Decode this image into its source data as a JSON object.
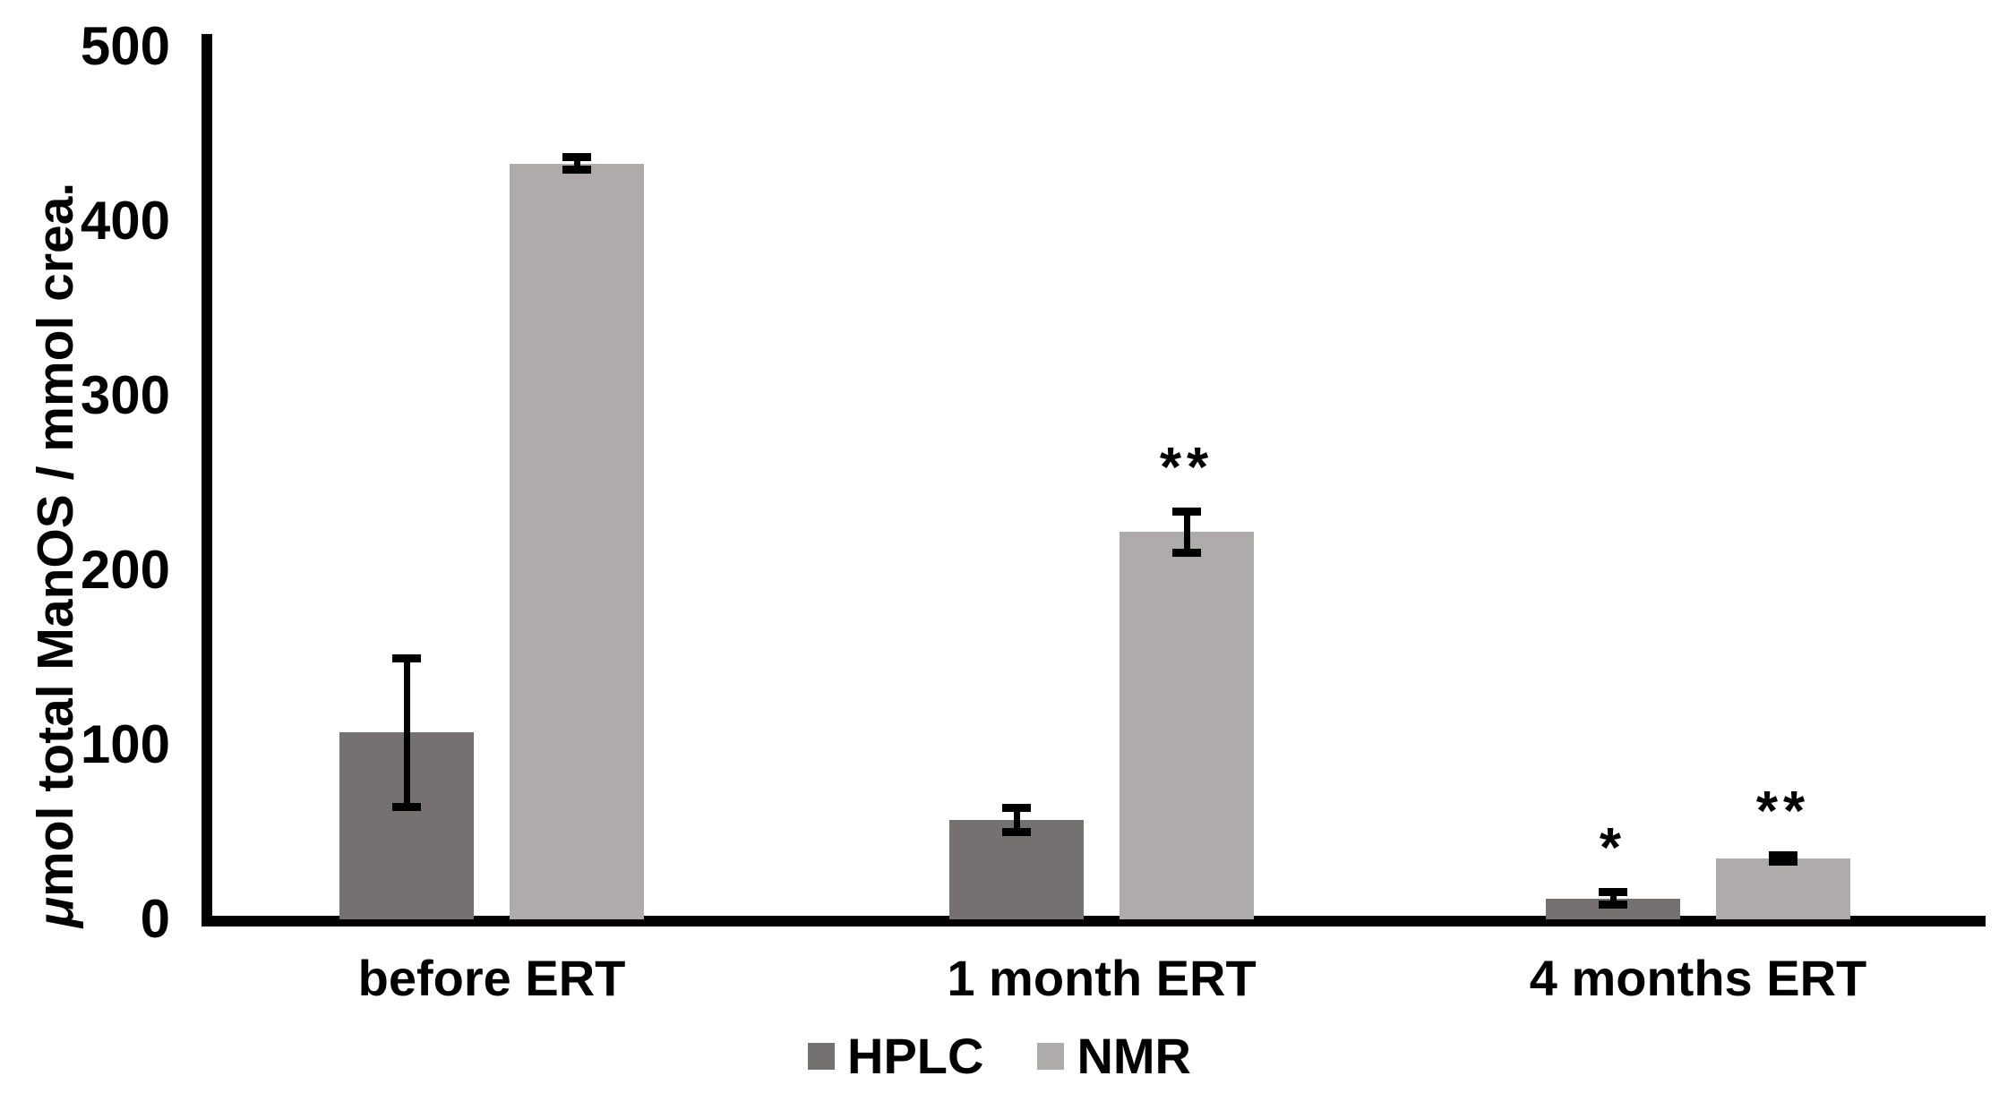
{
  "chart_data": {
    "type": "bar",
    "title": "",
    "categories": [
      "before ERT",
      "1 month ERT",
      "4 months ERT"
    ],
    "series": [
      {
        "name": "HPLC",
        "color": "#767171",
        "values": [
          107,
          57,
          12
        ],
        "errors": [
          43,
          7,
          4
        ],
        "significance": [
          "",
          "",
          "*"
        ]
      },
      {
        "name": "NMR",
        "color": "#AFABAB",
        "values": [
          433,
          222,
          35
        ],
        "errors": [
          4,
          12,
          2
        ],
        "significance": [
          "",
          "**",
          "**"
        ]
      }
    ],
    "ylabel": "μmol total ManOS / mmol crea.",
    "ylabel_mu": "μ",
    "ylabel_rest": "mol total ManOS / mmol crea.",
    "xlabel": "",
    "ylim": [
      0,
      500
    ],
    "yticks": [
      "0",
      "100",
      "200",
      "300",
      "400",
      "500"
    ],
    "grid": false,
    "legend_position": "bottom",
    "axis_color": "#000000",
    "text_color": "#000000"
  }
}
